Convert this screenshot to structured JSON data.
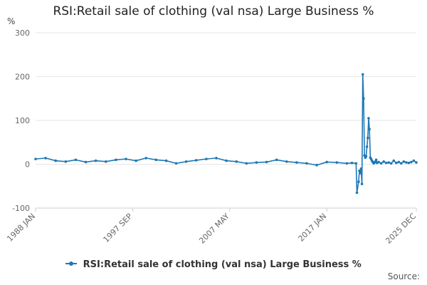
{
  "title": "RSI:Retail sale of clothing (val nsa) Large Business %",
  "source_label": "Source:",
  "colors": {
    "series": "#1f78b4",
    "grid": "#e6e6e6",
    "axis": "#cccccc",
    "text": "#666666"
  },
  "chart_data": {
    "type": "line",
    "title": "RSI:Retail sale of clothing (val nsa) Large Business %",
    "xlabel": "",
    "ylabel": "%",
    "ylim": [
      -100,
      300
    ],
    "yticks": [
      -100,
      0,
      100,
      200,
      300
    ],
    "xlim": [
      "1988-01",
      "2025-12"
    ],
    "xticks": [
      "1988 JAN",
      "1997 SEP",
      "2007 MAY",
      "2017 JAN",
      "2025 DEC"
    ],
    "xtick_dates": [
      "1988-01",
      "1997-09",
      "2007-05",
      "2017-01",
      "2025-12"
    ],
    "grid": true,
    "legend": "bottom-center",
    "series": [
      {
        "name": "RSI:Retail sale of clothing (val nsa) Large Business %",
        "x": [
          "1988-01",
          "1989-01",
          "1990-01",
          "1991-01",
          "1992-01",
          "1993-01",
          "1994-01",
          "1995-01",
          "1996-01",
          "1997-01",
          "1998-01",
          "1999-01",
          "2000-01",
          "2001-01",
          "2002-01",
          "2003-01",
          "2004-01",
          "2005-01",
          "2006-01",
          "2007-01",
          "2008-01",
          "2009-01",
          "2010-01",
          "2011-01",
          "2012-01",
          "2013-01",
          "2014-01",
          "2015-01",
          "2016-01",
          "2017-01",
          "2018-01",
          "2019-01",
          "2019-07",
          "2019-12",
          "2020-01",
          "2020-03",
          "2020-04",
          "2020-05",
          "2020-06",
          "2020-07",
          "2020-08",
          "2020-09",
          "2020-10",
          "2020-11",
          "2020-12",
          "2021-01",
          "2021-02",
          "2021-03",
          "2021-04",
          "2021-05",
          "2021-06",
          "2021-07",
          "2021-08",
          "2021-09",
          "2021-10",
          "2021-11",
          "2021-12",
          "2022-01",
          "2022-03",
          "2022-06",
          "2022-09",
          "2022-12",
          "2023-03",
          "2023-06",
          "2023-09",
          "2023-12",
          "2024-03",
          "2024-06",
          "2024-09",
          "2024-12",
          "2025-03",
          "2025-06",
          "2025-09",
          "2025-12"
        ],
        "values": [
          12,
          14,
          8,
          6,
          10,
          5,
          8,
          6,
          10,
          12,
          8,
          14,
          10,
          8,
          2,
          6,
          9,
          12,
          14,
          8,
          6,
          2,
          4,
          5,
          10,
          6,
          4,
          2,
          -2,
          5,
          4,
          2,
          3,
          2,
          -65,
          -40,
          -15,
          -20,
          -10,
          -45,
          205,
          150,
          20,
          15,
          18,
          40,
          60,
          105,
          80,
          15,
          12,
          8,
          5,
          2,
          4,
          6,
          10,
          3,
          5,
          2,
          6,
          3,
          4,
          2,
          8,
          3,
          5,
          2,
          6,
          4,
          3,
          5,
          8,
          4
        ]
      }
    ]
  }
}
